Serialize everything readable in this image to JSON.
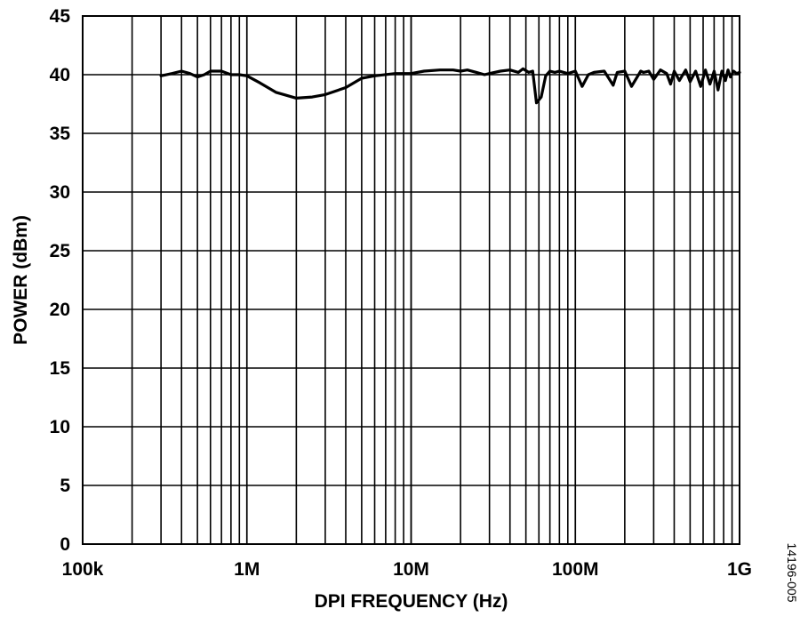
{
  "chart_data": {
    "type": "line",
    "xlabel": "DPI FREQUENCY (Hz)",
    "ylabel": "POWER (dBm)",
    "x_scale": "log",
    "xlim": [
      100000,
      1000000000
    ],
    "ylim": [
      0,
      45
    ],
    "x_ticks": [
      {
        "value": 100000,
        "label": "100k"
      },
      {
        "value": 1000000,
        "label": "1M"
      },
      {
        "value": 10000000,
        "label": "10M"
      },
      {
        "value": 100000000,
        "label": "100M"
      },
      {
        "value": 1000000000,
        "label": "1G"
      }
    ],
    "y_ticks": [
      {
        "value": 0,
        "label": "0"
      },
      {
        "value": 5,
        "label": "5"
      },
      {
        "value": 10,
        "label": "10"
      },
      {
        "value": 15,
        "label": "15"
      },
      {
        "value": 20,
        "label": "20"
      },
      {
        "value": 25,
        "label": "25"
      },
      {
        "value": 30,
        "label": "30"
      },
      {
        "value": 35,
        "label": "35"
      },
      {
        "value": 40,
        "label": "40"
      },
      {
        "value": 45,
        "label": "45"
      }
    ],
    "grid": true,
    "series": [
      {
        "x": [
          300000,
          350000,
          400000,
          450000,
          500000,
          550000,
          600000,
          700000,
          800000,
          900000,
          1000000,
          1200000,
          1500000,
          2000000,
          2500000,
          3000000,
          4000000,
          5000000,
          6000000,
          8000000,
          10000000,
          12000000,
          15000000,
          18000000,
          20000000,
          22000000,
          25000000,
          28000000,
          30000000,
          35000000,
          40000000,
          45000000,
          48000000,
          52000000,
          55000000,
          58000000,
          62000000,
          66000000,
          70000000,
          75000000,
          80000000,
          90000000,
          100000000,
          110000000,
          120000000,
          130000000,
          150000000,
          170000000,
          180000000,
          200000000,
          220000000,
          250000000,
          260000000,
          280000000,
          300000000,
          330000000,
          360000000,
          380000000,
          400000000,
          430000000,
          470000000,
          500000000,
          540000000,
          580000000,
          620000000,
          660000000,
          700000000,
          740000000,
          780000000,
          820000000,
          850000000,
          880000000,
          920000000,
          960000000,
          1000000000
        ],
        "y": [
          39.9,
          40.1,
          40.3,
          40.1,
          39.8,
          40.0,
          40.3,
          40.3,
          40.0,
          40.0,
          39.9,
          39.3,
          38.5,
          38.0,
          38.1,
          38.3,
          38.9,
          39.7,
          39.9,
          40.1,
          40.1,
          40.3,
          40.4,
          40.4,
          40.3,
          40.4,
          40.2,
          40.0,
          40.1,
          40.3,
          40.4,
          40.2,
          40.5,
          40.2,
          40.3,
          37.6,
          38.1,
          39.9,
          40.3,
          40.2,
          40.3,
          40.1,
          40.3,
          39.0,
          40.0,
          40.2,
          40.3,
          39.1,
          40.2,
          40.3,
          39.0,
          40.3,
          40.2,
          40.3,
          39.6,
          40.4,
          40.1,
          39.2,
          40.3,
          39.5,
          40.4,
          39.4,
          40.3,
          39.0,
          40.4,
          39.2,
          40.3,
          38.7,
          40.3,
          39.5,
          40.4,
          39.8,
          40.3,
          40.1,
          40.2
        ]
      }
    ]
  },
  "figure_id": "14196-005"
}
